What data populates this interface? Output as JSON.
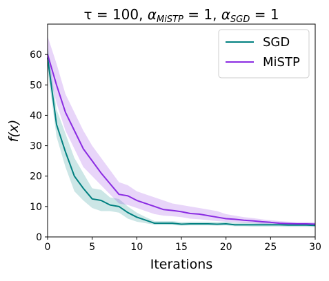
{
  "colors": {
    "sgd": "#008080",
    "mistp": "#8a2be2"
  },
  "chart_data": {
    "type": "line",
    "title": "τ = 100, α_MiSTP = 1, α_SGD = 1",
    "title_parts": {
      "tau": "τ = 100, ",
      "alpha": "α",
      "mistp_sub": "MiSTP",
      "mistp_val": " = 1, ",
      "sgd_sub": "SGD",
      "sgd_val": " = 1"
    },
    "xlabel": "Iterations",
    "ylabel": "f(x)",
    "xlim": [
      0,
      30
    ],
    "ylim": [
      0,
      70
    ],
    "xticks": [
      0,
      5,
      10,
      15,
      20,
      25,
      30
    ],
    "yticks": [
      0,
      10,
      20,
      30,
      40,
      50,
      60
    ],
    "xtick_labels": [
      "0",
      "5",
      "10",
      "15",
      "20",
      "25",
      "30"
    ],
    "ytick_labels": [
      "0",
      "10",
      "20",
      "30",
      "40",
      "50",
      "60"
    ],
    "grid": false,
    "legend_position": "top-right",
    "x": [
      0,
      1,
      2,
      3,
      4,
      5,
      6,
      7,
      8,
      9,
      10,
      11,
      12,
      13,
      14,
      15,
      16,
      17,
      18,
      19,
      20,
      21,
      22,
      23,
      24,
      25,
      26,
      27,
      28,
      29,
      30
    ],
    "series": [
      {
        "name": "SGD",
        "color": "#008080",
        "values": [
          59,
          37,
          28,
          20,
          16,
          12.5,
          12,
          10.5,
          10,
          8,
          6.5,
          5.5,
          4.5,
          4.5,
          4.5,
          4.2,
          4.3,
          4.3,
          4.3,
          4.2,
          4.3,
          4.0,
          4.0,
          4.0,
          4.0,
          4.0,
          4.0,
          3.9,
          3.9,
          3.9,
          3.8
        ],
        "upper": [
          63,
          42,
          34,
          26,
          21,
          16,
          15.5,
          13,
          12.5,
          10,
          8,
          6.5,
          5.2,
          5.2,
          5.2,
          4.9,
          5.0,
          5.0,
          5.0,
          4.9,
          5.0,
          4.7,
          4.7,
          4.7,
          4.7,
          4.6,
          4.6,
          4.6,
          4.5,
          4.5,
          4.5
        ],
        "lower": [
          55,
          33,
          23,
          15,
          12,
          9.5,
          8.5,
          8.5,
          8,
          6,
          5,
          4.5,
          4.0,
          4.0,
          3.9,
          3.7,
          3.8,
          3.8,
          3.8,
          3.7,
          3.8,
          3.5,
          3.5,
          3.4,
          3.4,
          3.4,
          3.4,
          3.3,
          3.3,
          3.3,
          3.2
        ]
      },
      {
        "name": "MiSTP",
        "color": "#8a2be2",
        "values": [
          60,
          50,
          41,
          35,
          29,
          25,
          21,
          17.5,
          14,
          13.5,
          12,
          11,
          10,
          9,
          8.7,
          8.3,
          7.7,
          7.5,
          7,
          6.5,
          6,
          5.8,
          5.5,
          5.3,
          5,
          4.8,
          4.5,
          4.4,
          4.3,
          4.3,
          4.2
        ],
        "upper": [
          66,
          57,
          47,
          41,
          35,
          30,
          26,
          22,
          18,
          17,
          15,
          14,
          13,
          12,
          11,
          10.5,
          10,
          9.5,
          9,
          8.5,
          7.5,
          7,
          6.5,
          6.2,
          5.8,
          5.5,
          5.2,
          5.0,
          4.9,
          4.9,
          4.8
        ],
        "lower": [
          56,
          44,
          35,
          29,
          23,
          20,
          17,
          14,
          11,
          10.5,
          9.5,
          8.5,
          7.5,
          7,
          6.8,
          6.5,
          6,
          5.8,
          5.5,
          5.2,
          5,
          4.8,
          4.6,
          4.5,
          4.3,
          4.2,
          4.0,
          3.9,
          3.8,
          3.8,
          3.7
        ]
      }
    ]
  }
}
